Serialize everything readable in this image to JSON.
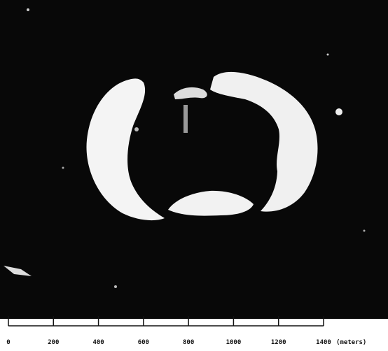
{
  "scale": {
    "ticks": [
      0,
      200,
      400,
      600,
      800,
      1000,
      1200,
      1400
    ],
    "unit": "(meters)"
  }
}
